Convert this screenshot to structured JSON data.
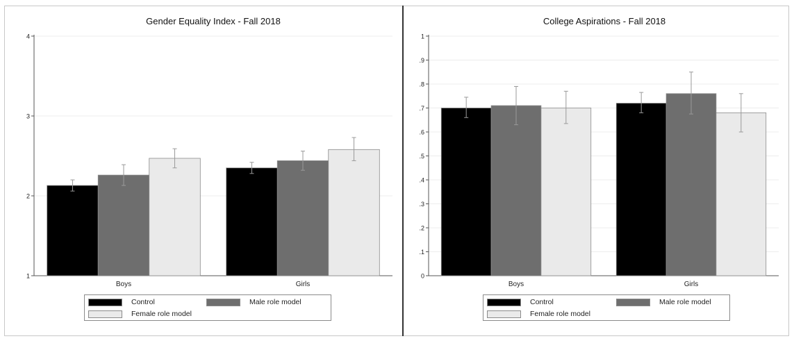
{
  "chart_data": [
    {
      "type": "bar",
      "title": "Gender Equality Index - Fall 2018",
      "categories": [
        "Boys",
        "Girls"
      ],
      "series": [
        {
          "name": "Control",
          "values": [
            2.13,
            2.35
          ],
          "ci_low": [
            2.06,
            2.28
          ],
          "ci_high": [
            2.2,
            2.42
          ]
        },
        {
          "name": "Male role model",
          "values": [
            2.26,
            2.44
          ],
          "ci_low": [
            2.13,
            2.32
          ],
          "ci_high": [
            2.39,
            2.56
          ]
        },
        {
          "name": "Female role model",
          "values": [
            2.47,
            2.58
          ],
          "ci_low": [
            2.35,
            2.44
          ],
          "ci_high": [
            2.59,
            2.73
          ]
        }
      ],
      "ylim": [
        1,
        4
      ],
      "yticks": [
        "1",
        "2",
        "3",
        "4"
      ],
      "ytick_values": [
        1,
        2,
        3,
        4
      ],
      "grid": true,
      "legend_position": "bottom"
    },
    {
      "type": "bar",
      "title": "College Aspirations - Fall 2018",
      "categories": [
        "Boys",
        "Girls"
      ],
      "series": [
        {
          "name": "Control",
          "values": [
            0.7,
            0.72
          ],
          "ci_low": [
            0.66,
            0.68
          ],
          "ci_high": [
            0.745,
            0.765
          ]
        },
        {
          "name": "Male role model",
          "values": [
            0.71,
            0.76
          ],
          "ci_low": [
            0.63,
            0.675
          ],
          "ci_high": [
            0.79,
            0.85
          ]
        },
        {
          "name": "Female role model",
          "values": [
            0.7,
            0.68
          ],
          "ci_low": [
            0.635,
            0.6
          ],
          "ci_high": [
            0.77,
            0.76
          ]
        }
      ],
      "ylim": [
        0,
        1
      ],
      "yticks": [
        "0",
        ".1",
        ".2",
        ".3",
        ".4",
        ".5",
        ".6",
        ".7",
        ".8",
        ".9",
        "1"
      ],
      "ytick_values": [
        0,
        0.1,
        0.2,
        0.3,
        0.4,
        0.5,
        0.6,
        0.7,
        0.8,
        0.9,
        1
      ],
      "grid": true,
      "legend_position": "bottom"
    }
  ],
  "colors": {
    "Control": "#000000",
    "Male role model": "#6e6e6e",
    "Female role model": "#eaeaea",
    "error_bar": "#999999",
    "grid": "#ececec"
  }
}
